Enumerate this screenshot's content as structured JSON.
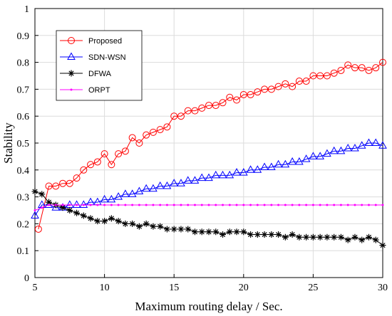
{
  "chart_data": {
    "type": "line",
    "title": "",
    "xlabel": "Maximum routing delay / Sec.",
    "ylabel": "Stability",
    "xlim": [
      5,
      30
    ],
    "ylim": [
      0,
      1
    ],
    "xticks": [
      "5",
      "10",
      "15",
      "20",
      "25",
      "30"
    ],
    "yticks": [
      "0",
      "0.1",
      "0.2",
      "0.3",
      "0.4",
      "0.5",
      "0.6",
      "0.7",
      "0.8",
      "0.9",
      "1"
    ],
    "grid": true,
    "legend_position": "top-left",
    "series": [
      {
        "name": "Proposed",
        "color": "#ff0000",
        "marker": "circle",
        "points": [
          [
            5.25,
            0.18
          ],
          [
            6.0,
            0.34
          ],
          [
            6.5,
            0.34
          ],
          [
            7.0,
            0.35
          ],
          [
            7.5,
            0.35
          ],
          [
            8.0,
            0.37
          ],
          [
            8.5,
            0.4
          ],
          [
            9.0,
            0.42
          ],
          [
            9.5,
            0.43
          ],
          [
            10.0,
            0.46
          ],
          [
            10.5,
            0.42
          ],
          [
            11.0,
            0.46
          ],
          [
            11.5,
            0.47
          ],
          [
            12.0,
            0.52
          ],
          [
            12.5,
            0.5
          ],
          [
            13.0,
            0.53
          ],
          [
            13.5,
            0.54
          ],
          [
            14.0,
            0.55
          ],
          [
            14.5,
            0.56
          ],
          [
            15.0,
            0.6
          ],
          [
            15.5,
            0.6
          ],
          [
            16.0,
            0.62
          ],
          [
            16.5,
            0.62
          ],
          [
            17.0,
            0.63
          ],
          [
            17.5,
            0.64
          ],
          [
            18.0,
            0.64
          ],
          [
            18.5,
            0.65
          ],
          [
            19.0,
            0.67
          ],
          [
            19.5,
            0.66
          ],
          [
            20.0,
            0.68
          ],
          [
            20.5,
            0.68
          ],
          [
            21.0,
            0.69
          ],
          [
            21.5,
            0.7
          ],
          [
            22.0,
            0.7
          ],
          [
            22.5,
            0.71
          ],
          [
            23.0,
            0.72
          ],
          [
            23.5,
            0.71
          ],
          [
            24.0,
            0.73
          ],
          [
            24.5,
            0.73
          ],
          [
            25.0,
            0.75
          ],
          [
            25.5,
            0.75
          ],
          [
            26.0,
            0.75
          ],
          [
            26.5,
            0.76
          ],
          [
            27.0,
            0.77
          ],
          [
            27.5,
            0.79
          ],
          [
            28.0,
            0.78
          ],
          [
            28.5,
            0.78
          ],
          [
            29.0,
            0.77
          ],
          [
            29.5,
            0.78
          ],
          [
            30.0,
            0.8
          ]
        ]
      },
      {
        "name": "SDN-WSN",
        "color": "#0000ff",
        "marker": "triangle",
        "points": [
          [
            5.0,
            0.23
          ],
          [
            5.5,
            0.27
          ],
          [
            6.0,
            0.27
          ],
          [
            6.5,
            0.26
          ],
          [
            7.0,
            0.26
          ],
          [
            7.5,
            0.27
          ],
          [
            8.0,
            0.27
          ],
          [
            8.5,
            0.27
          ],
          [
            9.0,
            0.28
          ],
          [
            9.5,
            0.28
          ],
          [
            10.0,
            0.29
          ],
          [
            10.5,
            0.29
          ],
          [
            11.0,
            0.3
          ],
          [
            11.5,
            0.31
          ],
          [
            12.0,
            0.31
          ],
          [
            12.5,
            0.32
          ],
          [
            13.0,
            0.33
          ],
          [
            13.5,
            0.33
          ],
          [
            14.0,
            0.34
          ],
          [
            14.5,
            0.34
          ],
          [
            15.0,
            0.35
          ],
          [
            15.5,
            0.35
          ],
          [
            16.0,
            0.36
          ],
          [
            16.5,
            0.36
          ],
          [
            17.0,
            0.37
          ],
          [
            17.5,
            0.37
          ],
          [
            18.0,
            0.38
          ],
          [
            18.5,
            0.38
          ],
          [
            19.0,
            0.38
          ],
          [
            19.5,
            0.39
          ],
          [
            20.0,
            0.39
          ],
          [
            20.5,
            0.4
          ],
          [
            21.0,
            0.4
          ],
          [
            21.5,
            0.41
          ],
          [
            22.0,
            0.41
          ],
          [
            22.5,
            0.42
          ],
          [
            23.0,
            0.42
          ],
          [
            23.5,
            0.43
          ],
          [
            24.0,
            0.43
          ],
          [
            24.5,
            0.44
          ],
          [
            25.0,
            0.45
          ],
          [
            25.5,
            0.45
          ],
          [
            26.0,
            0.46
          ],
          [
            26.5,
            0.47
          ],
          [
            27.0,
            0.47
          ],
          [
            27.5,
            0.48
          ],
          [
            28.0,
            0.48
          ],
          [
            28.5,
            0.49
          ],
          [
            29.0,
            0.5
          ],
          [
            29.5,
            0.5
          ],
          [
            30.0,
            0.49
          ]
        ]
      },
      {
        "name": "DFWA",
        "color": "#000000",
        "marker": "asterisk",
        "points": [
          [
            5.0,
            0.32
          ],
          [
            5.5,
            0.31
          ],
          [
            6.0,
            0.28
          ],
          [
            6.5,
            0.27
          ],
          [
            7.0,
            0.26
          ],
          [
            7.5,
            0.25
          ],
          [
            8.0,
            0.24
          ],
          [
            8.5,
            0.23
          ],
          [
            9.0,
            0.22
          ],
          [
            9.5,
            0.21
          ],
          [
            10.0,
            0.21
          ],
          [
            10.5,
            0.22
          ],
          [
            11.0,
            0.21
          ],
          [
            11.5,
            0.2
          ],
          [
            12.0,
            0.2
          ],
          [
            12.5,
            0.19
          ],
          [
            13.0,
            0.2
          ],
          [
            13.5,
            0.19
          ],
          [
            14.0,
            0.19
          ],
          [
            14.5,
            0.18
          ],
          [
            15.0,
            0.18
          ],
          [
            15.5,
            0.18
          ],
          [
            16.0,
            0.18
          ],
          [
            16.5,
            0.17
          ],
          [
            17.0,
            0.17
          ],
          [
            17.5,
            0.17
          ],
          [
            18.0,
            0.17
          ],
          [
            18.5,
            0.16
          ],
          [
            19.0,
            0.17
          ],
          [
            19.5,
            0.17
          ],
          [
            20.0,
            0.17
          ],
          [
            20.5,
            0.16
          ],
          [
            21.0,
            0.16
          ],
          [
            21.5,
            0.16
          ],
          [
            22.0,
            0.16
          ],
          [
            22.5,
            0.16
          ],
          [
            23.0,
            0.15
          ],
          [
            23.5,
            0.16
          ],
          [
            24.0,
            0.15
          ],
          [
            24.5,
            0.15
          ],
          [
            25.0,
            0.15
          ],
          [
            25.5,
            0.15
          ],
          [
            26.0,
            0.15
          ],
          [
            26.5,
            0.15
          ],
          [
            27.0,
            0.15
          ],
          [
            27.5,
            0.14
          ],
          [
            28.0,
            0.15
          ],
          [
            28.5,
            0.14
          ],
          [
            29.0,
            0.15
          ],
          [
            29.5,
            0.14
          ],
          [
            30.0,
            0.12
          ]
        ]
      },
      {
        "name": "ORPT",
        "color": "#ff00ff",
        "marker": "dot",
        "points": [
          [
            5.0,
            0.25
          ],
          [
            5.5,
            0.26
          ],
          [
            6.0,
            0.27
          ],
          [
            6.5,
            0.27
          ],
          [
            7.0,
            0.27
          ],
          [
            7.5,
            0.27
          ],
          [
            8.0,
            0.27
          ],
          [
            8.5,
            0.27
          ],
          [
            9.0,
            0.27
          ],
          [
            9.5,
            0.27
          ],
          [
            10.0,
            0.27
          ],
          [
            10.5,
            0.27
          ],
          [
            11.0,
            0.27
          ],
          [
            11.5,
            0.27
          ],
          [
            12.0,
            0.27
          ],
          [
            12.5,
            0.27
          ],
          [
            13.0,
            0.27
          ],
          [
            13.5,
            0.27
          ],
          [
            14.0,
            0.27
          ],
          [
            14.5,
            0.27
          ],
          [
            15.0,
            0.27
          ],
          [
            15.5,
            0.27
          ],
          [
            16.0,
            0.27
          ],
          [
            16.5,
            0.27
          ],
          [
            17.0,
            0.27
          ],
          [
            17.5,
            0.27
          ],
          [
            18.0,
            0.27
          ],
          [
            18.5,
            0.27
          ],
          [
            19.0,
            0.27
          ],
          [
            19.5,
            0.27
          ],
          [
            20.0,
            0.27
          ],
          [
            20.5,
            0.27
          ],
          [
            21.0,
            0.27
          ],
          [
            21.5,
            0.27
          ],
          [
            22.0,
            0.27
          ],
          [
            22.5,
            0.27
          ],
          [
            23.0,
            0.27
          ],
          [
            23.5,
            0.27
          ],
          [
            24.0,
            0.27
          ],
          [
            24.5,
            0.27
          ],
          [
            25.0,
            0.27
          ],
          [
            25.5,
            0.27
          ],
          [
            26.0,
            0.27
          ],
          [
            26.5,
            0.27
          ],
          [
            27.0,
            0.27
          ],
          [
            27.5,
            0.27
          ],
          [
            28.0,
            0.27
          ],
          [
            28.5,
            0.27
          ],
          [
            29.0,
            0.27
          ],
          [
            29.5,
            0.27
          ],
          [
            30.0,
            0.27
          ]
        ]
      }
    ]
  }
}
